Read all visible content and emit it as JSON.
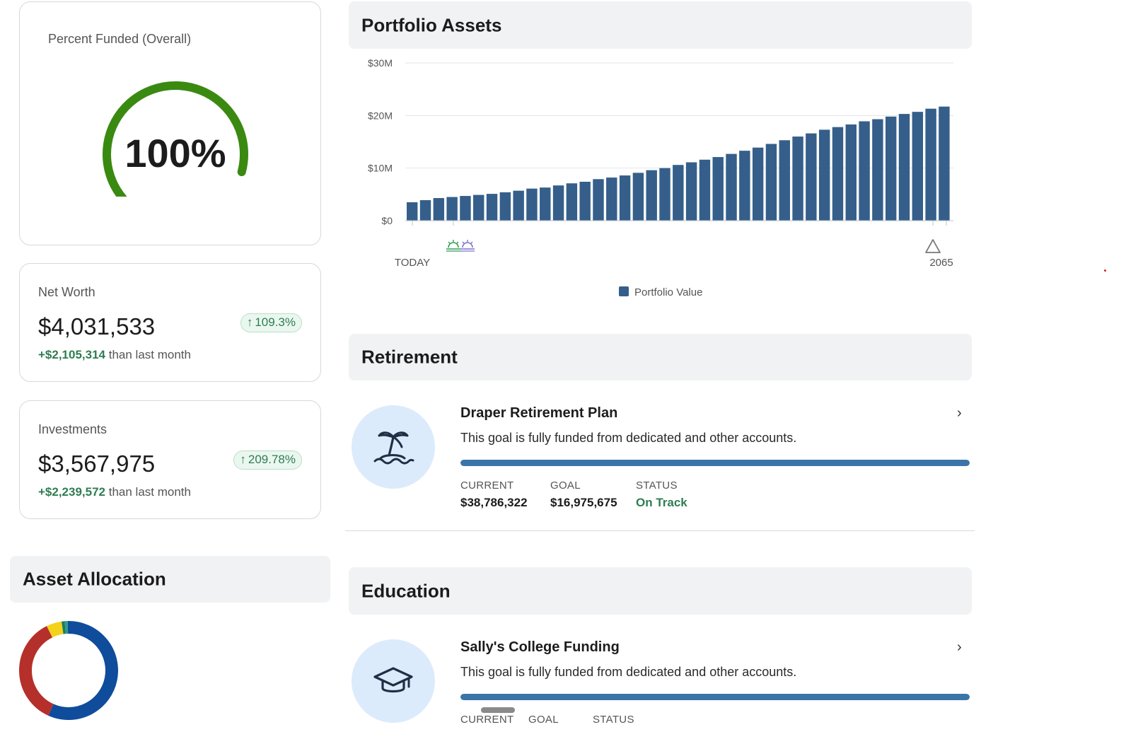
{
  "funded": {
    "label": "Percent Funded (Overall)",
    "value_text": "100%",
    "fraction": 1.0,
    "color": "#3a8a12"
  },
  "net_worth": {
    "label": "Net Worth",
    "value": "$4,031,533",
    "badge": "109.3%",
    "delta_amount": "+$2,105,314",
    "delta_text": " than last month"
  },
  "investments": {
    "label": "Investments",
    "value": "$3,567,975",
    "badge": "209.78%",
    "delta_amount": "+$2,239,572",
    "delta_text": " than last month"
  },
  "asset_allocation": {
    "title": "Asset Allocation",
    "segments": [
      {
        "share": 0.01,
        "color": "#2a9d8f"
      },
      {
        "share": 0.57,
        "color": "#0f4c9c"
      },
      {
        "share": 0.36,
        "color": "#b5302a"
      },
      {
        "share": 0.05,
        "color": "#f2d21b"
      },
      {
        "share": 0.01,
        "color": "#1f7a5a"
      }
    ]
  },
  "portfolio": {
    "title": "Portfolio Assets",
    "chart_data": {
      "type": "bar",
      "y_ticks": [
        "$30M",
        "$20M",
        "$10M",
        "$0"
      ],
      "ylim": [
        0,
        30
      ],
      "x_start_label": "TODAY",
      "x_end_label": "2065",
      "legend": "Portfolio Value",
      "color": "#355f8a",
      "values": [
        3.5,
        3.9,
        4.3,
        4.5,
        4.7,
        4.9,
        5.1,
        5.4,
        5.7,
        6.1,
        6.3,
        6.7,
        7.1,
        7.4,
        7.9,
        8.2,
        8.6,
        9.1,
        9.6,
        10.0,
        10.6,
        11.1,
        11.6,
        12.1,
        12.7,
        13.3,
        13.9,
        14.6,
        15.3,
        16.0,
        16.6,
        17.3,
        17.8,
        18.3,
        18.9,
        19.3,
        19.8,
        20.3,
        20.7,
        21.3,
        21.7
      ]
    }
  },
  "retirement": {
    "title": "Retirement",
    "goal": {
      "name": "Draper Retirement Plan",
      "desc": "This goal is fully funded from dedicated and other accounts.",
      "progress": 1.0,
      "current_label": "CURRENT",
      "current": "$38,786,322",
      "goal_label": "GOAL",
      "goal": "$16,975,675",
      "status_label": "STATUS",
      "status": "On Track"
    }
  },
  "education": {
    "title": "Education",
    "goal": {
      "name": "Sally's College Funding",
      "desc": "This goal is fully funded from dedicated and other accounts.",
      "progress": 1.0,
      "current_label": "CURRENT",
      "goal_label": "GOAL",
      "status_label": "STATUS"
    }
  },
  "icons": {
    "chevron": "›",
    "arrow_up": "↑",
    "retirement_icon": "palm-island-icon",
    "education_icon": "graduation-cap-icon"
  }
}
